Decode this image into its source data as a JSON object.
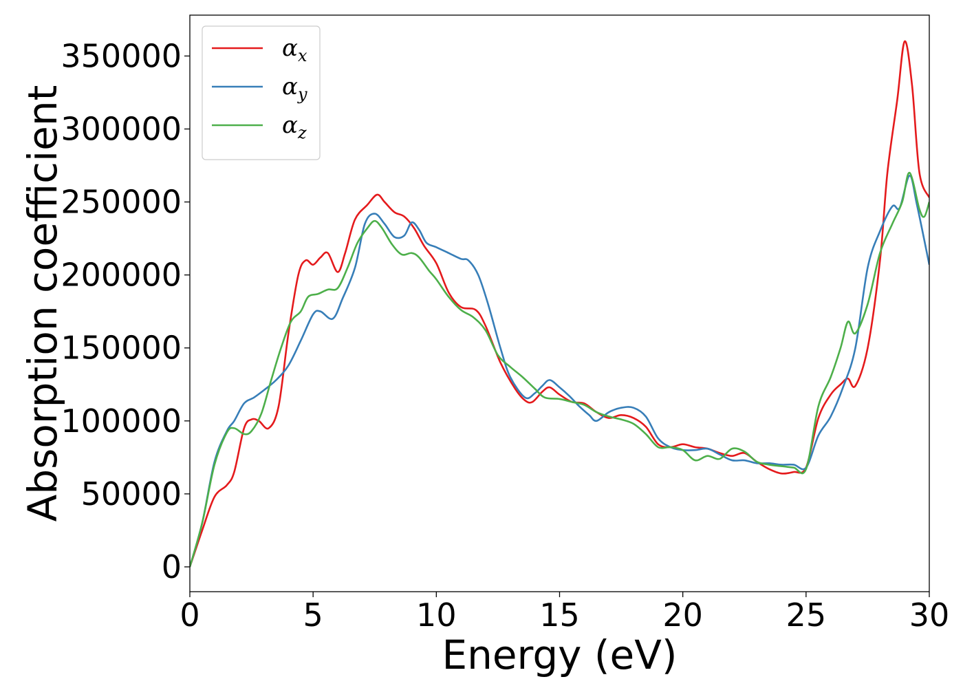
{
  "chart_data": {
    "type": "line",
    "xlabel": "Energy (eV)",
    "ylabel": "Absorption coefficient",
    "xlim": [
      0,
      30
    ],
    "ylim": [
      -17000,
      378000
    ],
    "xticks": [
      0,
      5,
      10,
      15,
      20,
      25,
      30
    ],
    "xtick_labels": [
      "0",
      "5",
      "10",
      "15",
      "20",
      "25",
      "30"
    ],
    "yticks": [
      0,
      50000,
      100000,
      150000,
      200000,
      250000,
      300000,
      350000
    ],
    "ytick_labels": [
      "0",
      "50000",
      "100000",
      "150000",
      "200000",
      "250000",
      "300000",
      "350000"
    ],
    "grid": false,
    "legend_position": "top-left",
    "series": [
      {
        "name": "α",
        "subscript": "x",
        "color": "#e41a1c",
        "points": [
          [
            0,
            0
          ],
          [
            0.5,
            25000
          ],
          [
            1,
            48000
          ],
          [
            1.5,
            56000
          ],
          [
            1.8,
            65000
          ],
          [
            2.2,
            95000
          ],
          [
            2.5,
            101000
          ],
          [
            2.8,
            100000
          ],
          [
            3.2,
            95000
          ],
          [
            3.6,
            110000
          ],
          [
            4,
            160000
          ],
          [
            4.4,
            200000
          ],
          [
            4.7,
            210000
          ],
          [
            5,
            207000
          ],
          [
            5.3,
            212000
          ],
          [
            5.6,
            215000
          ],
          [
            6,
            202000
          ],
          [
            6.3,
            215000
          ],
          [
            6.7,
            238000
          ],
          [
            7.2,
            248000
          ],
          [
            7.6,
            255000
          ],
          [
            7.9,
            250000
          ],
          [
            8.3,
            243000
          ],
          [
            8.7,
            240000
          ],
          [
            9.1,
            232000
          ],
          [
            9.5,
            220000
          ],
          [
            10,
            208000
          ],
          [
            10.5,
            188000
          ],
          [
            11,
            178000
          ],
          [
            11.6,
            176000
          ],
          [
            12,
            165000
          ],
          [
            12.6,
            140000
          ],
          [
            13.2,
            122000
          ],
          [
            13.6,
            114000
          ],
          [
            13.9,
            113000
          ],
          [
            14.3,
            120000
          ],
          [
            14.6,
            123000
          ],
          [
            15,
            118000
          ],
          [
            15.5,
            113000
          ],
          [
            16,
            112000
          ],
          [
            16.5,
            106000
          ],
          [
            17,
            102000
          ],
          [
            17.5,
            104000
          ],
          [
            18,
            102000
          ],
          [
            18.5,
            96000
          ],
          [
            19,
            84000
          ],
          [
            19.5,
            82000
          ],
          [
            20,
            84000
          ],
          [
            20.5,
            82000
          ],
          [
            21,
            81000
          ],
          [
            21.5,
            78000
          ],
          [
            22,
            76000
          ],
          [
            22.5,
            78000
          ],
          [
            23,
            72000
          ],
          [
            23.5,
            67000
          ],
          [
            24,
            64000
          ],
          [
            24.5,
            65000
          ],
          [
            25,
            68000
          ],
          [
            25.5,
            102000
          ],
          [
            26,
            118000
          ],
          [
            26.4,
            125000
          ],
          [
            26.7,
            129000
          ],
          [
            27,
            124000
          ],
          [
            27.5,
            150000
          ],
          [
            28,
            210000
          ],
          [
            28.3,
            270000
          ],
          [
            28.7,
            320000
          ],
          [
            29,
            360000
          ],
          [
            29.3,
            330000
          ],
          [
            29.6,
            270000
          ],
          [
            30,
            253000
          ]
        ]
      },
      {
        "name": "α",
        "subscript": "y",
        "color": "#377eb8",
        "points": [
          [
            0,
            0
          ],
          [
            0.5,
            30000
          ],
          [
            1,
            72000
          ],
          [
            1.5,
            93000
          ],
          [
            1.8,
            100000
          ],
          [
            2.2,
            112000
          ],
          [
            2.6,
            116000
          ],
          [
            3,
            121000
          ],
          [
            3.5,
            128000
          ],
          [
            4,
            138000
          ],
          [
            4.5,
            155000
          ],
          [
            5,
            173000
          ],
          [
            5.3,
            175000
          ],
          [
            5.8,
            170000
          ],
          [
            6.2,
            184000
          ],
          [
            6.7,
            205000
          ],
          [
            7.1,
            235000
          ],
          [
            7.5,
            242000
          ],
          [
            7.9,
            235000
          ],
          [
            8.3,
            226000
          ],
          [
            8.7,
            227000
          ],
          [
            9,
            236000
          ],
          [
            9.3,
            231000
          ],
          [
            9.6,
            222000
          ],
          [
            10,
            219000
          ],
          [
            10.5,
            215000
          ],
          [
            11,
            211000
          ],
          [
            11.3,
            210000
          ],
          [
            11.7,
            200000
          ],
          [
            12.1,
            180000
          ],
          [
            12.6,
            150000
          ],
          [
            13,
            130000
          ],
          [
            13.6,
            116000
          ],
          [
            14,
            119000
          ],
          [
            14.3,
            124000
          ],
          [
            14.6,
            128000
          ],
          [
            15,
            123000
          ],
          [
            15.4,
            117000
          ],
          [
            15.8,
            110000
          ],
          [
            16.2,
            104000
          ],
          [
            16.5,
            100000
          ],
          [
            17,
            106000
          ],
          [
            17.5,
            109000
          ],
          [
            18,
            109000
          ],
          [
            18.5,
            103000
          ],
          [
            19,
            88000
          ],
          [
            19.5,
            82000
          ],
          [
            20,
            80000
          ],
          [
            20.5,
            80000
          ],
          [
            21,
            81000
          ],
          [
            21.5,
            77000
          ],
          [
            22,
            73000
          ],
          [
            22.5,
            73000
          ],
          [
            23,
            71000
          ],
          [
            23.5,
            71000
          ],
          [
            24,
            70000
          ],
          [
            24.5,
            70000
          ],
          [
            25,
            68000
          ],
          [
            25.5,
            90000
          ],
          [
            26,
            103000
          ],
          [
            26.5,
            123000
          ],
          [
            27,
            150000
          ],
          [
            27.5,
            205000
          ],
          [
            28,
            230000
          ],
          [
            28.5,
            247000
          ],
          [
            28.8,
            246000
          ],
          [
            29.2,
            268000
          ],
          [
            29.5,
            248000
          ],
          [
            30,
            207000
          ]
        ]
      },
      {
        "name": "α",
        "subscript": "z",
        "color": "#4daf4a",
        "points": [
          [
            0,
            0
          ],
          [
            0.5,
            30000
          ],
          [
            1,
            70000
          ],
          [
            1.5,
            92000
          ],
          [
            1.8,
            95000
          ],
          [
            2.2,
            91000
          ],
          [
            2.5,
            93000
          ],
          [
            2.9,
            105000
          ],
          [
            3.3,
            128000
          ],
          [
            3.7,
            150000
          ],
          [
            4.1,
            168000
          ],
          [
            4.5,
            175000
          ],
          [
            4.8,
            185000
          ],
          [
            5.2,
            187000
          ],
          [
            5.6,
            190000
          ],
          [
            6,
            191000
          ],
          [
            6.4,
            205000
          ],
          [
            6.8,
            222000
          ],
          [
            7.2,
            232000
          ],
          [
            7.5,
            237000
          ],
          [
            7.8,
            232000
          ],
          [
            8.2,
            221000
          ],
          [
            8.6,
            214000
          ],
          [
            9,
            215000
          ],
          [
            9.3,
            212000
          ],
          [
            9.7,
            203000
          ],
          [
            10,
            197000
          ],
          [
            10.5,
            185000
          ],
          [
            11,
            176000
          ],
          [
            11.5,
            171000
          ],
          [
            12,
            162000
          ],
          [
            12.5,
            145000
          ],
          [
            13,
            137000
          ],
          [
            13.5,
            130000
          ],
          [
            14,
            122000
          ],
          [
            14.4,
            116000
          ],
          [
            15,
            115000
          ],
          [
            15.5,
            113000
          ],
          [
            16,
            111000
          ],
          [
            16.5,
            106000
          ],
          [
            17,
            103000
          ],
          [
            17.5,
            101000
          ],
          [
            18,
            98000
          ],
          [
            18.5,
            91000
          ],
          [
            19,
            82000
          ],
          [
            19.5,
            82000
          ],
          [
            20,
            80000
          ],
          [
            20.5,
            73000
          ],
          [
            21,
            76000
          ],
          [
            21.5,
            74000
          ],
          [
            22,
            81000
          ],
          [
            22.5,
            79000
          ],
          [
            23,
            72000
          ],
          [
            23.5,
            70000
          ],
          [
            24,
            69000
          ],
          [
            24.5,
            68000
          ],
          [
            25,
            67000
          ],
          [
            25.5,
            110000
          ],
          [
            26,
            130000
          ],
          [
            26.4,
            150000
          ],
          [
            26.7,
            168000
          ],
          [
            27,
            160000
          ],
          [
            27.5,
            180000
          ],
          [
            28,
            215000
          ],
          [
            28.5,
            235000
          ],
          [
            28.9,
            250000
          ],
          [
            29.2,
            270000
          ],
          [
            29.6,
            245000
          ],
          [
            29.8,
            240000
          ],
          [
            30,
            250000
          ]
        ]
      }
    ]
  }
}
